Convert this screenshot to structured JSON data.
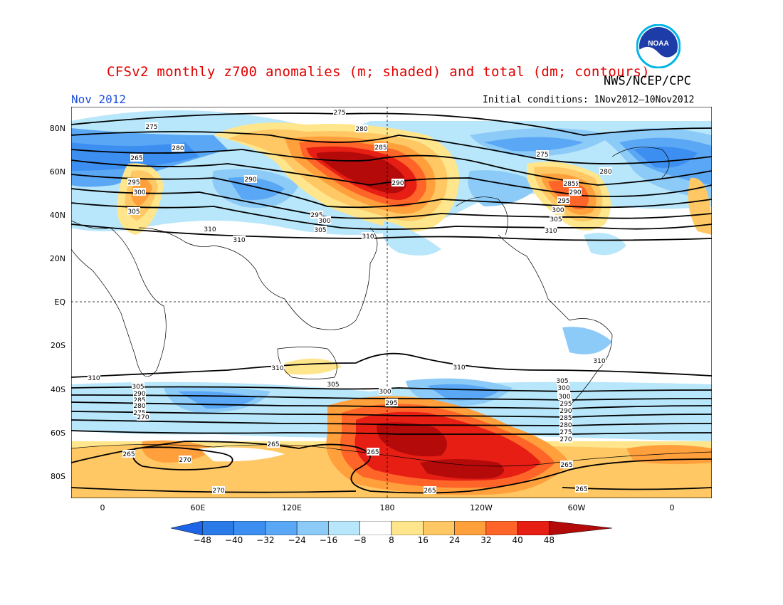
{
  "header": {
    "title": "CFSv2 monthly z700 anomalies (m; shaded) and total (dm; contours)",
    "agency": "NWS/NCEP/CPC",
    "month": "Nov 2012",
    "init_conditions": "Initial conditions: 1Nov2012–10Nov2012"
  },
  "logo": {
    "icon": "noaa-logo-icon",
    "text": "NOAA"
  },
  "axes": {
    "lat_labels": [
      "80N",
      "60N",
      "40N",
      "20N",
      "EQ",
      "20S",
      "40S",
      "60S",
      "80S"
    ],
    "lon_labels": [
      "0",
      "60E",
      "120E",
      "180",
      "120W",
      "60W",
      "0"
    ]
  },
  "colorbar": {
    "labels": [
      "−48",
      "−40",
      "−32",
      "−24",
      "−16",
      "−8",
      "8",
      "16",
      "24",
      "32",
      "40",
      "48"
    ],
    "colors": [
      "#1e64e6",
      "#2a7ae8",
      "#3c8ff0",
      "#5aa8f5",
      "#8ccaf8",
      "#b8e6fa",
      "#ffffff",
      "#ffe68c",
      "#ffc864",
      "#ffa03c",
      "#ff6428",
      "#e61e14",
      "#b40a0a"
    ]
  },
  "contour_labels": [
    "275",
    "275",
    "280",
    "280",
    "285",
    "265",
    "295",
    "300",
    "305",
    "290",
    "290",
    "295",
    "300",
    "305",
    "310",
    "310",
    "310",
    "285",
    "275",
    "280",
    "285",
    "290",
    "295",
    "300",
    "305",
    "310",
    "310",
    "305",
    "300",
    "295",
    "310",
    "305",
    "290",
    "285",
    "280",
    "275",
    "270",
    "300",
    "295",
    "310",
    "305",
    "300",
    "295",
    "290",
    "285",
    "280",
    "275",
    "270",
    "310",
    "265",
    "270",
    "265",
    "265",
    "265",
    "265",
    "270",
    "265"
  ]
}
